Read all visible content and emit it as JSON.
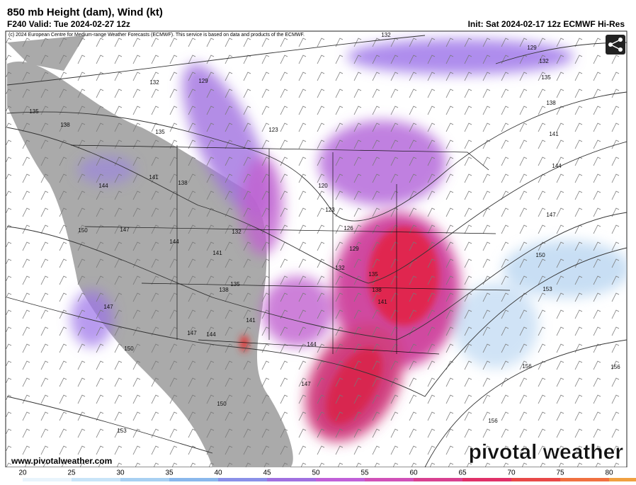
{
  "header": {
    "title": "850 mb Height (dam), Wind (kt)",
    "valid": "F240 Valid: Tue 2024-02-27 12z",
    "init": "Init: Sat 2024-02-17 12z ECMWF Hi-Res",
    "credit": "(c) 2024 European Centre for Medium-range Weather Forecasts (ECMWF). This service is based on data and products of the ECMWF."
  },
  "map": {
    "contour_labels": [
      "132",
      "129",
      "132",
      "135",
      "138",
      "135",
      "123",
      "129",
      "132",
      "135",
      "138",
      "141",
      "144",
      "141",
      "144",
      "138",
      "120",
      "123",
      "126",
      "147",
      "150",
      "147",
      "132",
      "144",
      "141",
      "129",
      "132",
      "135",
      "150",
      "138",
      "135",
      "138",
      "141",
      "153",
      "147",
      "141",
      "147",
      "144",
      "144",
      "150",
      "156",
      "156",
      "147",
      "150",
      "153",
      "156"
    ]
  },
  "footer": {
    "url": "www.pivotalweather.com",
    "logo": "pivotal weather"
  },
  "colorbar": {
    "ticks": [
      20,
      25,
      30,
      35,
      40,
      45,
      50,
      55,
      60,
      65,
      70,
      75,
      80
    ]
  }
}
